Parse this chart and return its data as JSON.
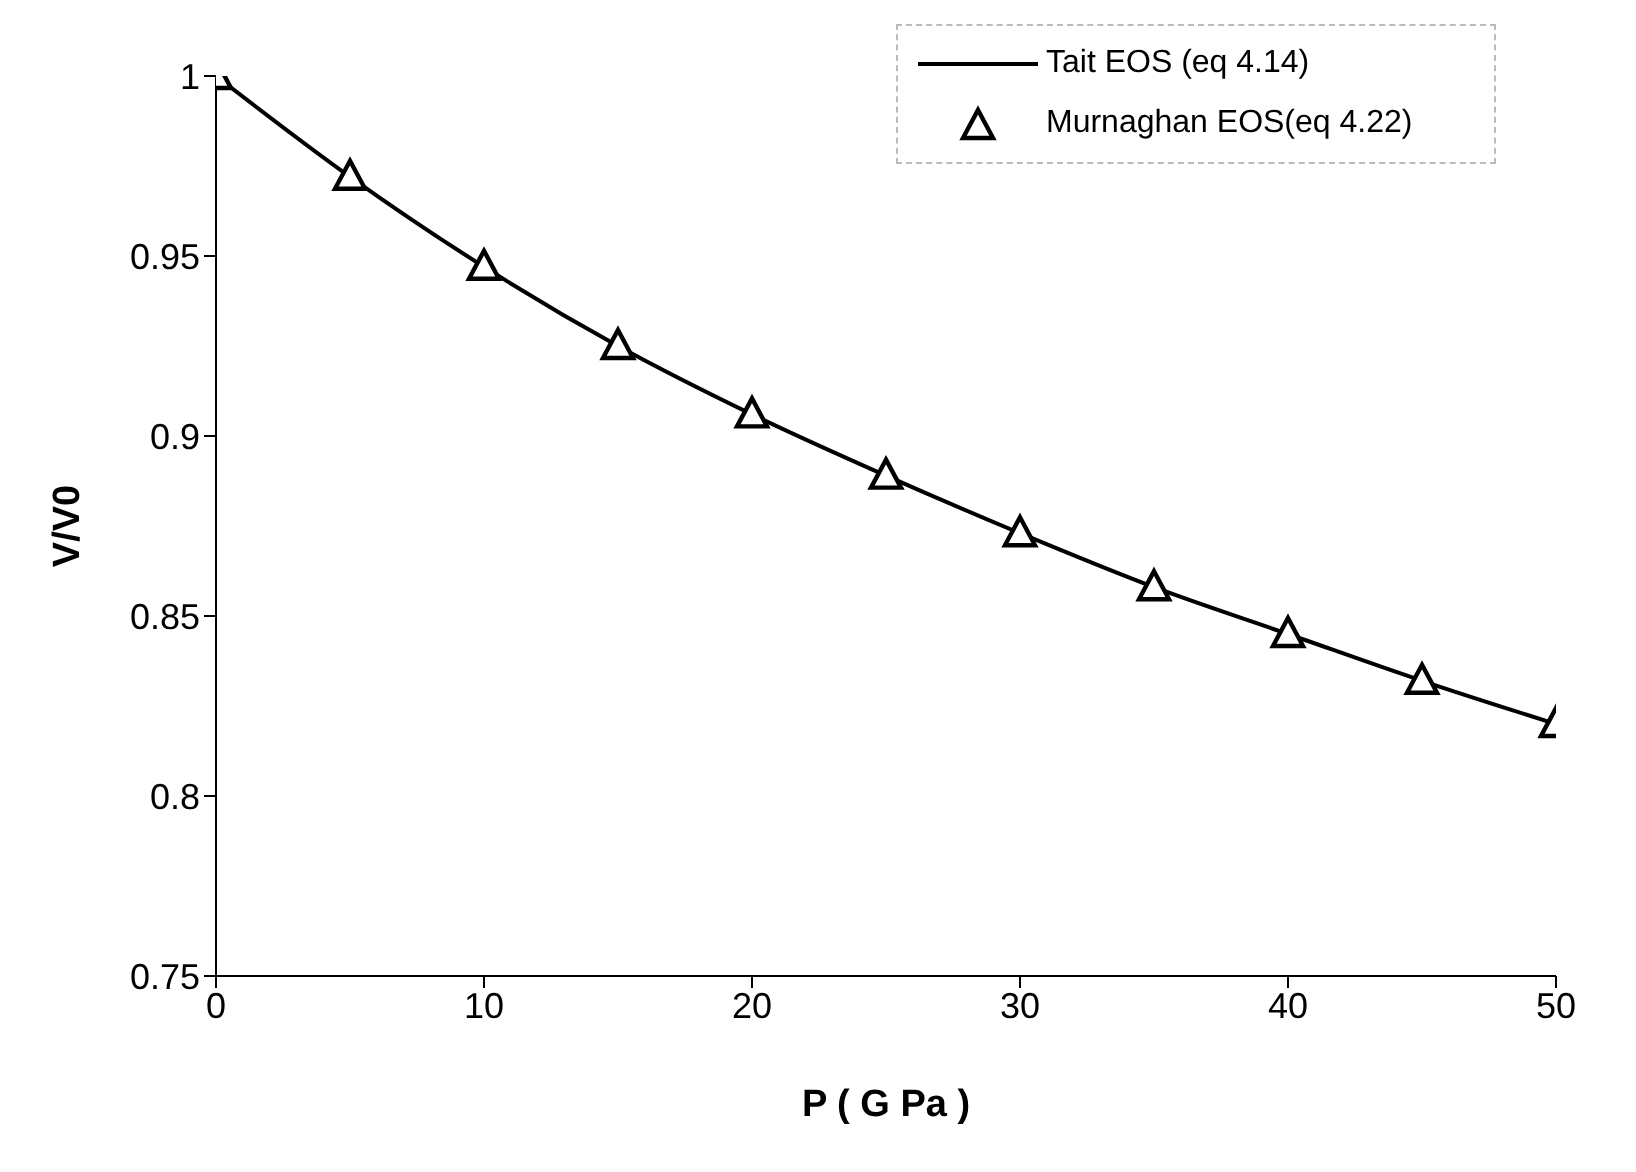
{
  "chart_data": {
    "type": "line",
    "xlabel": "P ( G Pa )",
    "ylabel": "V/V0",
    "x": [
      0,
      5,
      10,
      15,
      20,
      25,
      30,
      35,
      40,
      45,
      50
    ],
    "series": [
      {
        "name": "Tait EOS (eq 4.14)",
        "color": "#000000",
        "marker": "none",
        "values": [
          1,
          0.972,
          0.947,
          0.925,
          0.906,
          0.889,
          0.873,
          0.858,
          0.845,
          0.832,
          0.82
        ]
      },
      {
        "name": "Murnaghan EOS(eq 4.22)",
        "type": "scatter",
        "color": "#000000",
        "marker": "triangle",
        "values": [
          1,
          0.972,
          0.947,
          0.925,
          0.906,
          0.889,
          0.873,
          0.858,
          0.845,
          0.832,
          0.82
        ]
      }
    ],
    "xlim": [
      0,
      50
    ],
    "xticks": [
      0,
      10,
      20,
      30,
      40,
      50
    ],
    "ylim": [
      0.75,
      1
    ],
    "yticks": [
      0.75,
      0.8,
      0.85,
      0.9,
      0.95,
      1
    ],
    "grid": false,
    "legend": "top right"
  }
}
